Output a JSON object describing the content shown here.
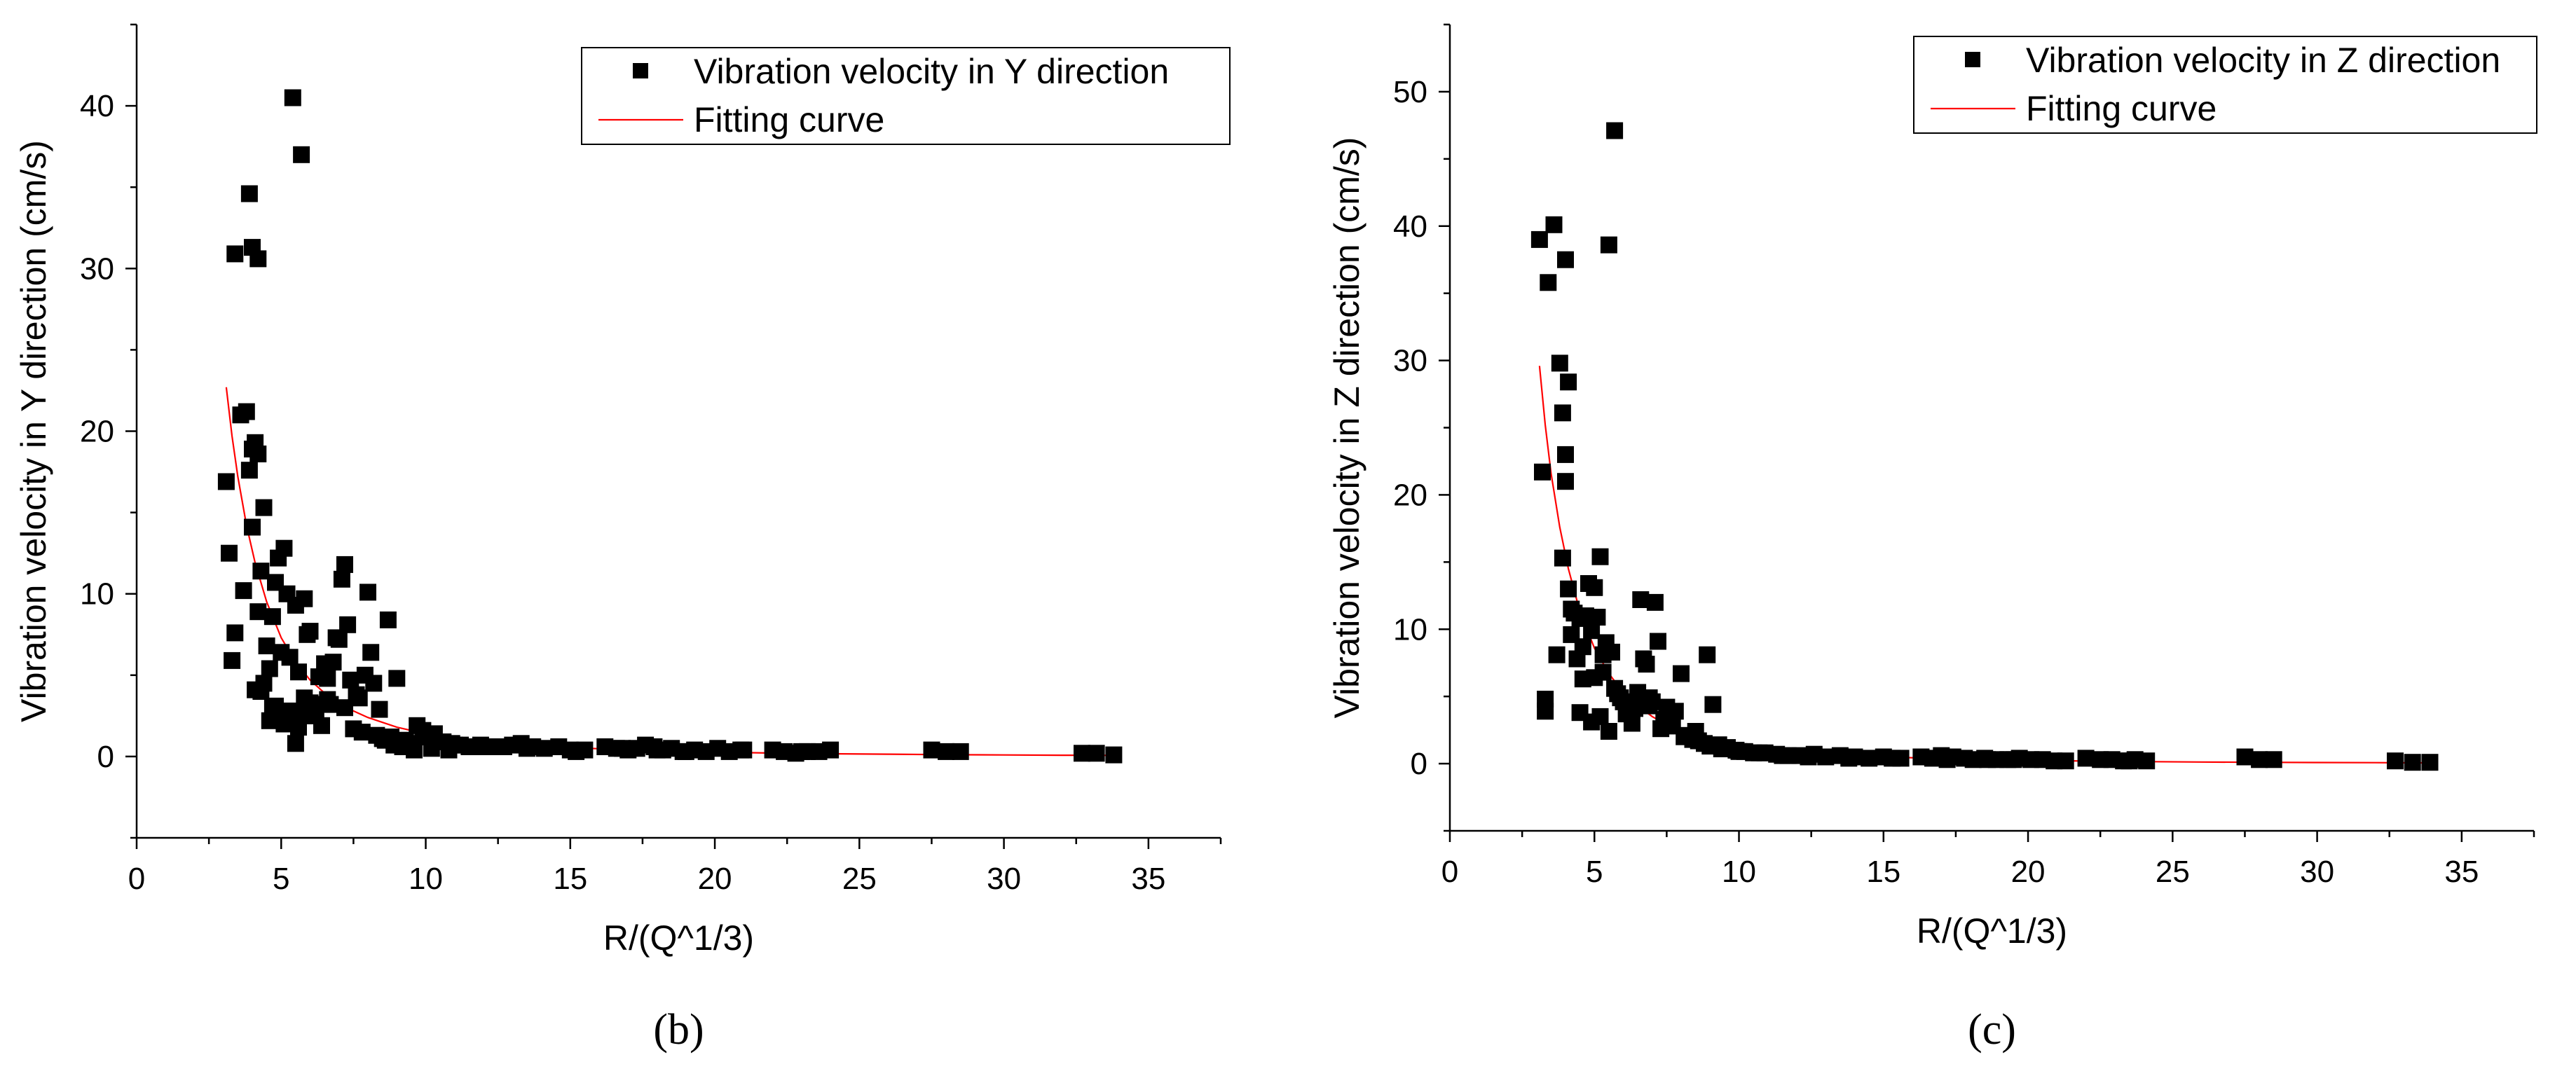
{
  "colors": {
    "marker": "#000000",
    "fit": "#ff0000",
    "axis": "#000000",
    "background": "#ffffff"
  },
  "chart_data": [
    {
      "type": "scatter",
      "panel_label": "(b)",
      "xlabel": "R/(Q^1/3)",
      "ylabel": "Vibration velocity in Y direction (cm/s)",
      "xlim": [
        0,
        37.5
      ],
      "ylim": [
        -5,
        45
      ],
      "xticks": [
        0,
        5,
        10,
        15,
        20,
        25,
        30,
        35
      ],
      "xtick_labels": [
        "0",
        "5",
        "10",
        "15",
        "20",
        "25",
        "30",
        "35"
      ],
      "yticks": [
        0,
        10,
        20,
        30,
        40
      ],
      "ytick_labels": [
        "0",
        "10",
        "20",
        "30",
        "40"
      ],
      "grid": false,
      "legend": {
        "position": "top-right",
        "entries": [
          "Vibration velocity in Y direction",
          "Fitting curve"
        ]
      },
      "series": [
        {
          "name": "Vibration velocity in Y direction",
          "marker": "square",
          "x": [
            5.4,
            5.7,
            3.9,
            3.4,
            4.0,
            4.2,
            3.6,
            3.8,
            3.1,
            4.1,
            4.2,
            3.9,
            4.0,
            4.4,
            4.0,
            3.2,
            5.1,
            4.9,
            4.3,
            3.7,
            3.4,
            4.8,
            5.2,
            5.5,
            5.8,
            5.9,
            6.0,
            3.3,
            4.2,
            4.7,
            4.5,
            5.0,
            5.3,
            4.6,
            5.6,
            4.1,
            4.4,
            6.3,
            6.5,
            6.8,
            7.0,
            7.2,
            7.1,
            6.9,
            7.3,
            8.0,
            8.1,
            8.7,
            7.9,
            8.2,
            9.0,
            6.6,
            6.7,
            7.2,
            6.1,
            5.7,
            5.6,
            4.9,
            5.3,
            4.8,
            5.0,
            5.8,
            6.2,
            5.5,
            4.6,
            4.7,
            4.3,
            5.4,
            5.1,
            6.4,
            7.5,
            7.8,
            8.3,
            8.5,
            8.8,
            9.1,
            9.3,
            9.5,
            9.7,
            9.9,
            10.1,
            10.3,
            10.6,
            10.9,
            11.2,
            11.5,
            11.9,
            12.3,
            12.7,
            13.0,
            13.3,
            13.7,
            14.1,
            14.6,
            15.0,
            15.2,
            16.2,
            16.6,
            17.0,
            17.3,
            17.6,
            17.9,
            18.2,
            18.5,
            18.9,
            19.3,
            19.7,
            20.1,
            20.5,
            20.9,
            22.0,
            22.4,
            22.8,
            23.2,
            23.6,
            24.0,
            27.5,
            28.0,
            28.5,
            32.7,
            33.2,
            33.8,
            9.2,
            9.6,
            10.0,
            10.4,
            11.0,
            12.0,
            13.5,
            15.5,
            16.8,
            18.0,
            19.0,
            21.0,
            23.0,
            8.6,
            8.9,
            9.4,
            10.2,
            10.8,
            6.0,
            5.9,
            7.4,
            7.6,
            7.7,
            8.4,
            6.6
          ],
          "y": [
            40.5,
            37.0,
            34.6,
            30.9,
            31.3,
            30.6,
            21.0,
            21.2,
            16.9,
            19.3,
            18.6,
            17.6,
            14.1,
            15.3,
            18.9,
            12.5,
            12.8,
            12.2,
            11.4,
            10.2,
            7.6,
            10.7,
            10.0,
            9.3,
            9.7,
            7.5,
            7.7,
            5.9,
            8.9,
            8.6,
            6.8,
            6.4,
            6.1,
            5.4,
            5.2,
            4.1,
            4.5,
            4.9,
            5.7,
            5.8,
            7.2,
            11.8,
            10.9,
            7.3,
            8.1,
            10.1,
            6.4,
            8.4,
            5.0,
            4.5,
            4.8,
            3.5,
            3.2,
            3.0,
            3.2,
            2.7,
            1.8,
            2.6,
            2.8,
            3.1,
            2.3,
            3.6,
            2.9,
            0.8,
            2.2,
            3.0,
            4.0,
            2.4,
            2.0,
            1.9,
            1.7,
            1.5,
            1.3,
            1.1,
            1.2,
            0.9,
            1.0,
            0.8,
            1.9,
            1.6,
            1.2,
            1.4,
            0.9,
            0.8,
            0.7,
            0.6,
            0.7,
            0.6,
            0.6,
            0.7,
            0.8,
            0.6,
            0.5,
            0.6,
            0.4,
            0.3,
            0.6,
            0.5,
            0.4,
            0.5,
            0.7,
            0.6,
            0.4,
            0.5,
            0.3,
            0.4,
            0.3,
            0.5,
            0.3,
            0.4,
            0.4,
            0.3,
            0.2,
            0.3,
            0.3,
            0.4,
            0.4,
            0.3,
            0.3,
            0.2,
            0.2,
            0.1,
            0.6,
            0.4,
            1.2,
            0.9,
            0.7,
            0.6,
            0.5,
            0.4,
            0.5,
            0.4,
            0.3,
            0.4,
            0.3,
            1.0,
            0.7,
            0.6,
            0.5,
            0.4,
            3.3,
            2.5,
            4.7,
            3.8,
            3.6,
            2.9,
            4.8
          ]
        },
        {
          "name": "Fitting curve",
          "line": true,
          "x": [
            3.1,
            3.3,
            3.5,
            3.8,
            4.1,
            4.5,
            5.0,
            5.5,
            6.0,
            6.5,
            7.0,
            7.5,
            8.0,
            9.0,
            10.0,
            11.0,
            12.0,
            13.0,
            14.0,
            15.0,
            16.5,
            18.0,
            20.0,
            22.0,
            24.0,
            26.0,
            28.0,
            30.0,
            32.0,
            34.0
          ],
          "y": [
            22.7,
            19.7,
            17.2,
            14.2,
            11.9,
            9.5,
            7.3,
            5.8,
            4.7,
            3.9,
            3.3,
            2.8,
            2.4,
            1.8,
            1.4,
            1.14,
            0.93,
            0.77,
            0.65,
            0.55,
            0.44,
            0.36,
            0.27,
            0.21,
            0.17,
            0.14,
            0.11,
            0.093,
            0.079,
            0.068
          ]
        }
      ]
    },
    {
      "type": "scatter",
      "panel_label": "(c)",
      "xlabel": "R/(Q^1/3)",
      "ylabel": "Vibration velocity in Z direction (cm/s)",
      "xlim": [
        0,
        37.5
      ],
      "ylim": [
        -5,
        55
      ],
      "xticks": [
        0,
        5,
        10,
        15,
        20,
        25,
        30,
        35
      ],
      "xtick_labels": [
        "0",
        "5",
        "10",
        "15",
        "20",
        "25",
        "30",
        "35"
      ],
      "yticks": [
        0,
        10,
        20,
        30,
        40,
        50
      ],
      "ytick_labels": [
        "0",
        "10",
        "20",
        "30",
        "40",
        "50"
      ],
      "grid": false,
      "legend": {
        "position": "top-right",
        "entries": [
          "Vibration velocity in Z direction",
          "Fitting curve"
        ]
      },
      "series": [
        {
          "name": "Vibration velocity in Z direction",
          "marker": "square",
          "x": [
            5.7,
            3.6,
            3.1,
            4.0,
            3.4,
            5.5,
            3.8,
            4.1,
            3.9,
            4.0,
            4.0,
            3.2,
            3.9,
            5.2,
            4.3,
            4.8,
            5.0,
            4.1,
            4.5,
            4.2,
            4.7,
            5.1,
            3.7,
            4.9,
            5.4,
            5.3,
            5.6,
            6.6,
            6.8,
            7.1,
            7.2,
            6.7,
            7.0,
            8.0,
            8.9,
            9.1,
            6.5,
            6.9,
            7.5,
            7.8,
            4.4,
            4.6,
            5.8,
            6.0,
            6.2,
            3.3,
            3.3,
            4.5,
            4.9,
            5.2,
            5.5,
            6.3,
            7.4,
            8.2,
            8.4,
            8.6,
            8.8,
            9.3,
            9.6,
            9.9,
            10.2,
            10.5,
            10.9,
            11.3,
            11.7,
            12.1,
            12.6,
            13.0,
            13.5,
            14.0,
            14.5,
            15.0,
            15.3,
            16.3,
            16.7,
            17.0,
            17.4,
            17.8,
            18.1,
            18.5,
            18.9,
            19.3,
            19.7,
            20.1,
            20.5,
            20.9,
            22.0,
            22.5,
            22.9,
            23.3,
            23.7,
            24.1,
            27.5,
            28.0,
            28.5,
            32.7,
            33.3,
            33.9,
            5.0,
            5.9,
            6.1,
            7.3,
            7.6,
            8.1,
            9.0,
            9.4,
            10.0,
            10.7,
            11.5,
            12.4,
            13.8,
            15.6,
            17.2,
            18.6,
            19.5,
            21.3,
            23.5,
            4.2,
            4.6,
            5.7,
            6.4,
            7.7,
            8.5,
            5.3,
            6.9
          ],
          "y": [
            47.1,
            40.1,
            39.0,
            37.5,
            35.8,
            38.6,
            29.8,
            28.4,
            26.1,
            23.0,
            21.0,
            21.7,
            15.3,
            15.4,
            11.2,
            13.4,
            13.1,
            13.0,
            10.8,
            11.5,
            11.0,
            10.9,
            8.1,
            9.9,
            9.0,
            8.1,
            8.3,
            12.2,
            7.4,
            12.0,
            9.1,
            7.8,
            4.6,
            6.7,
            8.1,
            4.4,
            5.3,
            4.9,
            4.2,
            3.9,
            7.8,
            6.3,
            5.2,
            4.6,
            4.0,
            4.8,
            3.9,
            3.8,
            3.1,
            3.5,
            2.4,
            3.0,
            3.3,
            2.1,
            1.8,
            1.7,
            1.5,
            1.4,
            1.2,
            1.0,
            0.9,
            0.8,
            0.8,
            0.7,
            0.6,
            0.6,
            0.7,
            0.5,
            0.6,
            0.5,
            0.4,
            0.5,
            0.4,
            0.5,
            0.4,
            0.6,
            0.5,
            0.4,
            0.3,
            0.4,
            0.3,
            0.3,
            0.4,
            0.3,
            0.3,
            0.2,
            0.4,
            0.3,
            0.3,
            0.2,
            0.3,
            0.2,
            0.5,
            0.3,
            0.3,
            0.2,
            0.1,
            0.1,
            6.4,
            4.9,
            3.7,
            2.6,
            2.8,
            2.0,
            1.3,
            1.1,
            0.9,
            0.8,
            0.6,
            0.5,
            0.4,
            0.4,
            0.3,
            0.3,
            0.3,
            0.2,
            0.2,
            9.6,
            8.7,
            5.6,
            4.1,
            3.2,
            2.4,
            6.8,
            4.3
          ]
        },
        {
          "name": "Fitting curve",
          "line": true,
          "x": [
            3.1,
            3.3,
            3.5,
            3.8,
            4.1,
            4.5,
            5.0,
            5.5,
            6.0,
            6.5,
            7.0,
            7.5,
            8.0,
            9.0,
            10.0,
            11.0,
            12.0,
            13.0,
            14.0,
            15.0,
            16.5,
            18.0,
            20.0,
            22.0,
            24.0,
            26.0,
            28.0,
            30.0,
            32.0,
            34.0
          ],
          "y": [
            29.6,
            25.2,
            21.6,
            17.6,
            14.5,
            11.3,
            8.6,
            6.7,
            5.3,
            4.3,
            3.5,
            2.9,
            2.5,
            1.8,
            1.4,
            1.1,
            0.88,
            0.72,
            0.6,
            0.51,
            0.4,
            0.32,
            0.24,
            0.19,
            0.15,
            0.12,
            0.1,
            0.083,
            0.07,
            0.059
          ]
        }
      ]
    }
  ]
}
